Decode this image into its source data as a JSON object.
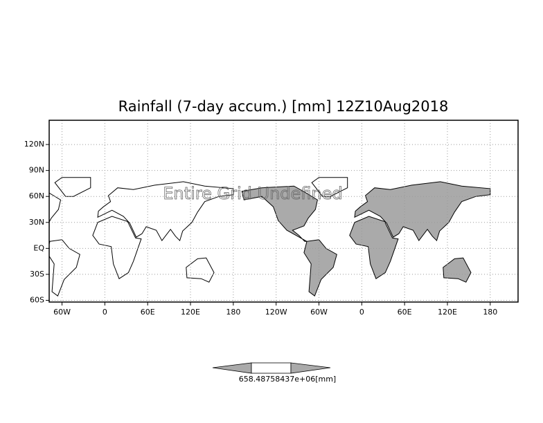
{
  "chart_data": {
    "type": "map",
    "title": "Rainfall (7-day accum.) [mm] 12Z10Aug2018",
    "watermark": "Entire Grid Undefined",
    "colorbar_label": "658.48758437e+06[mm]",
    "xlim": [
      -78,
      579
    ],
    "ylim": [
      -62,
      148
    ],
    "xticks": [
      {
        "value": -60,
        "label": "60W"
      },
      0,
      {
        "value": 60,
        "label": "60E"
      },
      {
        "value": 120,
        "label": "120E"
      },
      180,
      {
        "value": 240,
        "label": "120W"
      },
      {
        "value": 300,
        "label": "60W"
      },
      {
        "value": 360,
        "label": "0"
      },
      {
        "value": 420,
        "label": "60E"
      },
      {
        "value": 480,
        "label": "120E"
      },
      {
        "value": 540,
        "label": "180"
      }
    ],
    "yticks": [
      {
        "value": -60,
        "label": "60S"
      },
      {
        "value": -30,
        "label": "30S"
      },
      {
        "value": 0,
        "label": "EQ"
      },
      {
        "value": 30,
        "label": "30N"
      },
      {
        "value": 60,
        "label": "60N"
      },
      {
        "value": 90,
        "label": "90N"
      },
      {
        "value": 120,
        "label": "120N"
      }
    ],
    "grid": true
  }
}
